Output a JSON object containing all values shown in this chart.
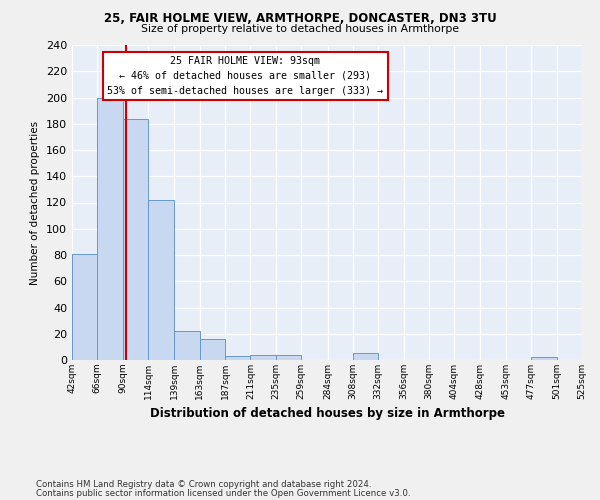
{
  "title_line1": "25, FAIR HOLME VIEW, ARMTHORPE, DONCASTER, DN3 3TU",
  "title_line2": "Size of property relative to detached houses in Armthorpe",
  "xlabel": "Distribution of detached houses by size in Armthorpe",
  "ylabel": "Number of detached properties",
  "bar_edges": [
    42,
    66,
    90,
    114,
    139,
    163,
    187,
    211,
    235,
    259,
    284,
    308,
    332,
    356,
    380,
    404,
    428,
    453,
    477,
    501,
    525
  ],
  "bar_heights": [
    81,
    200,
    184,
    122,
    22,
    16,
    3,
    4,
    4,
    0,
    0,
    5,
    0,
    0,
    0,
    0,
    0,
    0,
    2,
    0,
    0
  ],
  "bar_color": "#c8d8f0",
  "bar_edge_color": "#6699cc",
  "property_size": 93,
  "vline_color": "#cc0000",
  "annotation_text": "25 FAIR HOLME VIEW: 93sqm\n← 46% of detached houses are smaller (293)\n53% of semi-detached houses are larger (333) →",
  "annotation_box_color": "#ffffff",
  "annotation_box_edge": "#cc0000",
  "ylim": [
    0,
    240
  ],
  "yticks": [
    0,
    20,
    40,
    60,
    80,
    100,
    120,
    140,
    160,
    180,
    200,
    220,
    240
  ],
  "background_color": "#e8eef8",
  "grid_color": "#ffffff",
  "footer_line1": "Contains HM Land Registry data © Crown copyright and database right 2024.",
  "footer_line2": "Contains public sector information licensed under the Open Government Licence v3.0."
}
